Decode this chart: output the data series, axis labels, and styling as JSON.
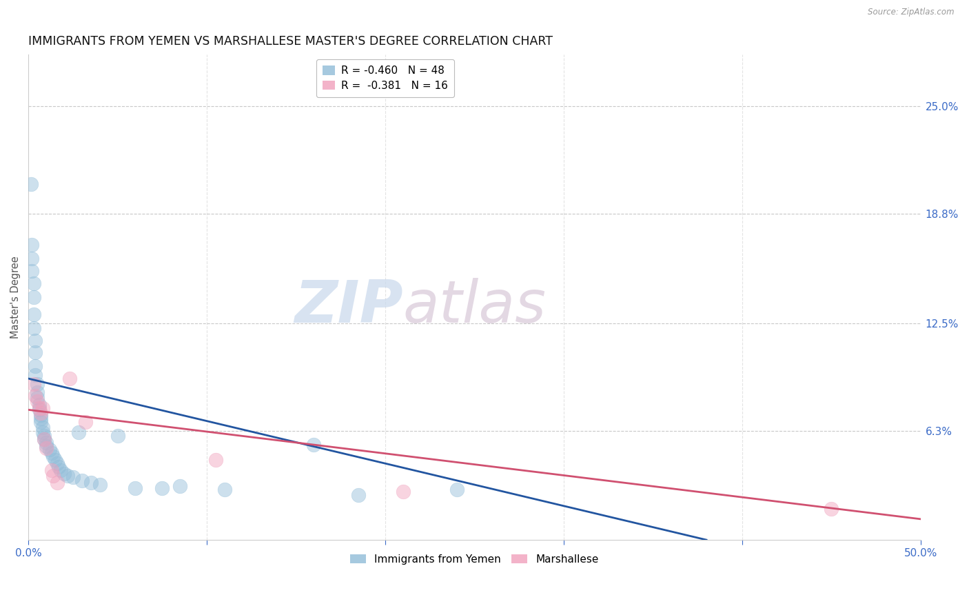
{
  "title": "IMMIGRANTS FROM YEMEN VS MARSHALLESE MASTER'S DEGREE CORRELATION CHART",
  "source": "Source: ZipAtlas.com",
  "ylabel": "Master's Degree",
  "right_yticks": [
    0.25,
    0.188,
    0.125,
    0.063
  ],
  "right_ytick_labels": [
    "25.0%",
    "18.8%",
    "12.5%",
    "6.3%"
  ],
  "legend_entries": [
    {
      "label": "R = -0.460   N = 48",
      "color": "#a8c8e8"
    },
    {
      "label": "R =  -0.381   N = 16",
      "color": "#f8b8cc"
    }
  ],
  "legend_labels": [
    "Immigrants from Yemen",
    "Marshallese"
  ],
  "blue_scatter": [
    [
      0.0015,
      0.205
    ],
    [
      0.002,
      0.17
    ],
    [
      0.002,
      0.162
    ],
    [
      0.002,
      0.155
    ],
    [
      0.003,
      0.148
    ],
    [
      0.003,
      0.14
    ],
    [
      0.003,
      0.13
    ],
    [
      0.003,
      0.122
    ],
    [
      0.004,
      0.115
    ],
    [
      0.004,
      0.108
    ],
    [
      0.004,
      0.1
    ],
    [
      0.004,
      0.095
    ],
    [
      0.005,
      0.09
    ],
    [
      0.005,
      0.085
    ],
    [
      0.005,
      0.082
    ],
    [
      0.006,
      0.078
    ],
    [
      0.006,
      0.075
    ],
    [
      0.007,
      0.072
    ],
    [
      0.007,
      0.07
    ],
    [
      0.007,
      0.068
    ],
    [
      0.008,
      0.065
    ],
    [
      0.008,
      0.062
    ],
    [
      0.009,
      0.06
    ],
    [
      0.009,
      0.058
    ],
    [
      0.01,
      0.056
    ],
    [
      0.01,
      0.054
    ],
    [
      0.012,
      0.052
    ],
    [
      0.013,
      0.05
    ],
    [
      0.014,
      0.048
    ],
    [
      0.015,
      0.046
    ],
    [
      0.016,
      0.044
    ],
    [
      0.017,
      0.042
    ],
    [
      0.018,
      0.04
    ],
    [
      0.02,
      0.038
    ],
    [
      0.022,
      0.037
    ],
    [
      0.025,
      0.036
    ],
    [
      0.028,
      0.062
    ],
    [
      0.03,
      0.034
    ],
    [
      0.035,
      0.033
    ],
    [
      0.04,
      0.032
    ],
    [
      0.05,
      0.06
    ],
    [
      0.06,
      0.03
    ],
    [
      0.075,
      0.03
    ],
    [
      0.085,
      0.031
    ],
    [
      0.11,
      0.029
    ],
    [
      0.16,
      0.055
    ],
    [
      0.185,
      0.026
    ],
    [
      0.24,
      0.029
    ]
  ],
  "pink_scatter": [
    [
      0.003,
      0.09
    ],
    [
      0.004,
      0.083
    ],
    [
      0.005,
      0.08
    ],
    [
      0.006,
      0.076
    ],
    [
      0.007,
      0.073
    ],
    [
      0.008,
      0.076
    ],
    [
      0.009,
      0.058
    ],
    [
      0.01,
      0.053
    ],
    [
      0.013,
      0.04
    ],
    [
      0.014,
      0.037
    ],
    [
      0.016,
      0.033
    ],
    [
      0.023,
      0.093
    ],
    [
      0.032,
      0.068
    ],
    [
      0.105,
      0.046
    ],
    [
      0.21,
      0.028
    ],
    [
      0.45,
      0.018
    ]
  ],
  "blue_line_x": [
    0.0,
    0.38
  ],
  "blue_line_y": [
    0.093,
    0.0
  ],
  "pink_line_x": [
    0.0,
    0.5
  ],
  "pink_line_y": [
    0.075,
    0.012
  ],
  "xmin": 0.0,
  "xmax": 0.5,
  "ymin": 0.0,
  "ymax": 0.28,
  "scatter_size": 220,
  "scatter_alpha": 0.45,
  "blue_color": "#90bcd8",
  "pink_color": "#f0a0bc",
  "blue_line_color": "#2255a0",
  "pink_line_color": "#d05070",
  "grid_color": "#c8c8c8",
  "background_color": "#ffffff",
  "title_fontsize": 12.5,
  "axis_tick_color": "#3b6bc7",
  "watermark_zip_color": "#c8d8ec",
  "watermark_atlas_color": "#d8c8d8"
}
